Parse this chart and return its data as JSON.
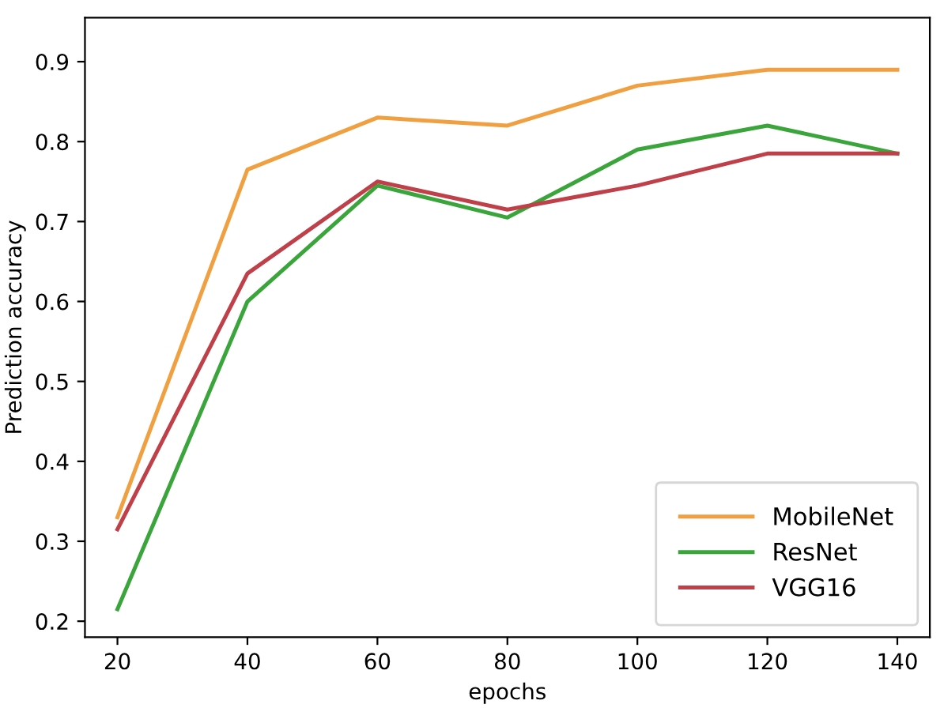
{
  "chart_data": {
    "type": "line",
    "xlabel": "epochs",
    "ylabel": "Prediction accuracy",
    "x": [
      20,
      40,
      60,
      80,
      100,
      120,
      140
    ],
    "series": [
      {
        "name": "MobileNet",
        "color": "#f0a040",
        "values": [
          0.33,
          0.765,
          0.83,
          0.82,
          0.87,
          0.89,
          0.89
        ]
      },
      {
        "name": "ResNet",
        "color": "#3aa53a",
        "values": [
          0.215,
          0.6,
          0.745,
          0.705,
          0.79,
          0.82,
          0.785
        ]
      },
      {
        "name": "VGG16",
        "color": "#c0404a",
        "values": [
          0.315,
          0.635,
          0.75,
          0.715,
          0.745,
          0.785,
          0.785
        ]
      }
    ],
    "xlim": [
      15,
      145
    ],
    "ylim": [
      0.18,
      0.955
    ],
    "xticks": [
      20,
      40,
      60,
      80,
      100,
      120,
      140
    ],
    "yticks": [
      0.2,
      0.3,
      0.4,
      0.5,
      0.6,
      0.7,
      0.8,
      0.9
    ],
    "legend": "lower right",
    "grid": false
  }
}
